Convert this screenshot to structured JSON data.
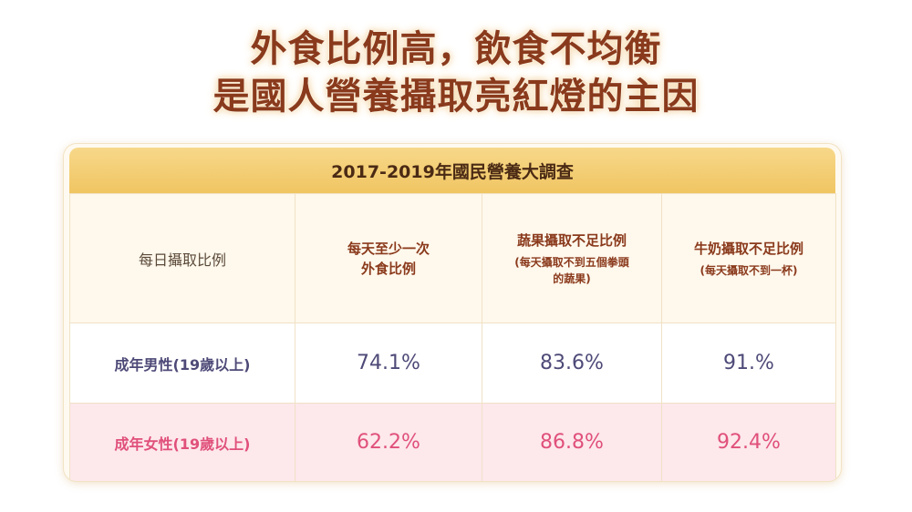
{
  "headline": {
    "line1": "外食比例高，飲食不均衡",
    "line2": "是國人營養攝取亮紅燈的主因"
  },
  "table": {
    "title": "2017-2019年國民營養大調查",
    "row_header_label": "每日攝取比例",
    "columns": [
      {
        "title_line1": "每天至少一次",
        "title_line2": "外食比例",
        "note_line1": "",
        "note_line2": ""
      },
      {
        "title_line1": "蔬果攝取不足比例",
        "title_line2": "",
        "note_line1": "(每天攝取不到五個拳頭",
        "note_line2": "的蔬果)"
      },
      {
        "title_line1": "牛奶攝取不足比例",
        "title_line2": "",
        "note_line1": "(每天攝取不到一杯)",
        "note_line2": ""
      }
    ],
    "rows": [
      {
        "label": "成年男性(19歲以上)",
        "values": [
          "74.1%",
          "83.6%",
          "91.%"
        ]
      },
      {
        "label": "成年女性(19歲以上)",
        "values": [
          "62.2%",
          "86.8%",
          "92.4%"
        ]
      }
    ]
  },
  "colors": {
    "headline": "#8a3a1c",
    "table_head": "#f0c562",
    "male": "#4e4a78",
    "female": "#e0507a",
    "female_row_bg": "#fde8ec"
  }
}
